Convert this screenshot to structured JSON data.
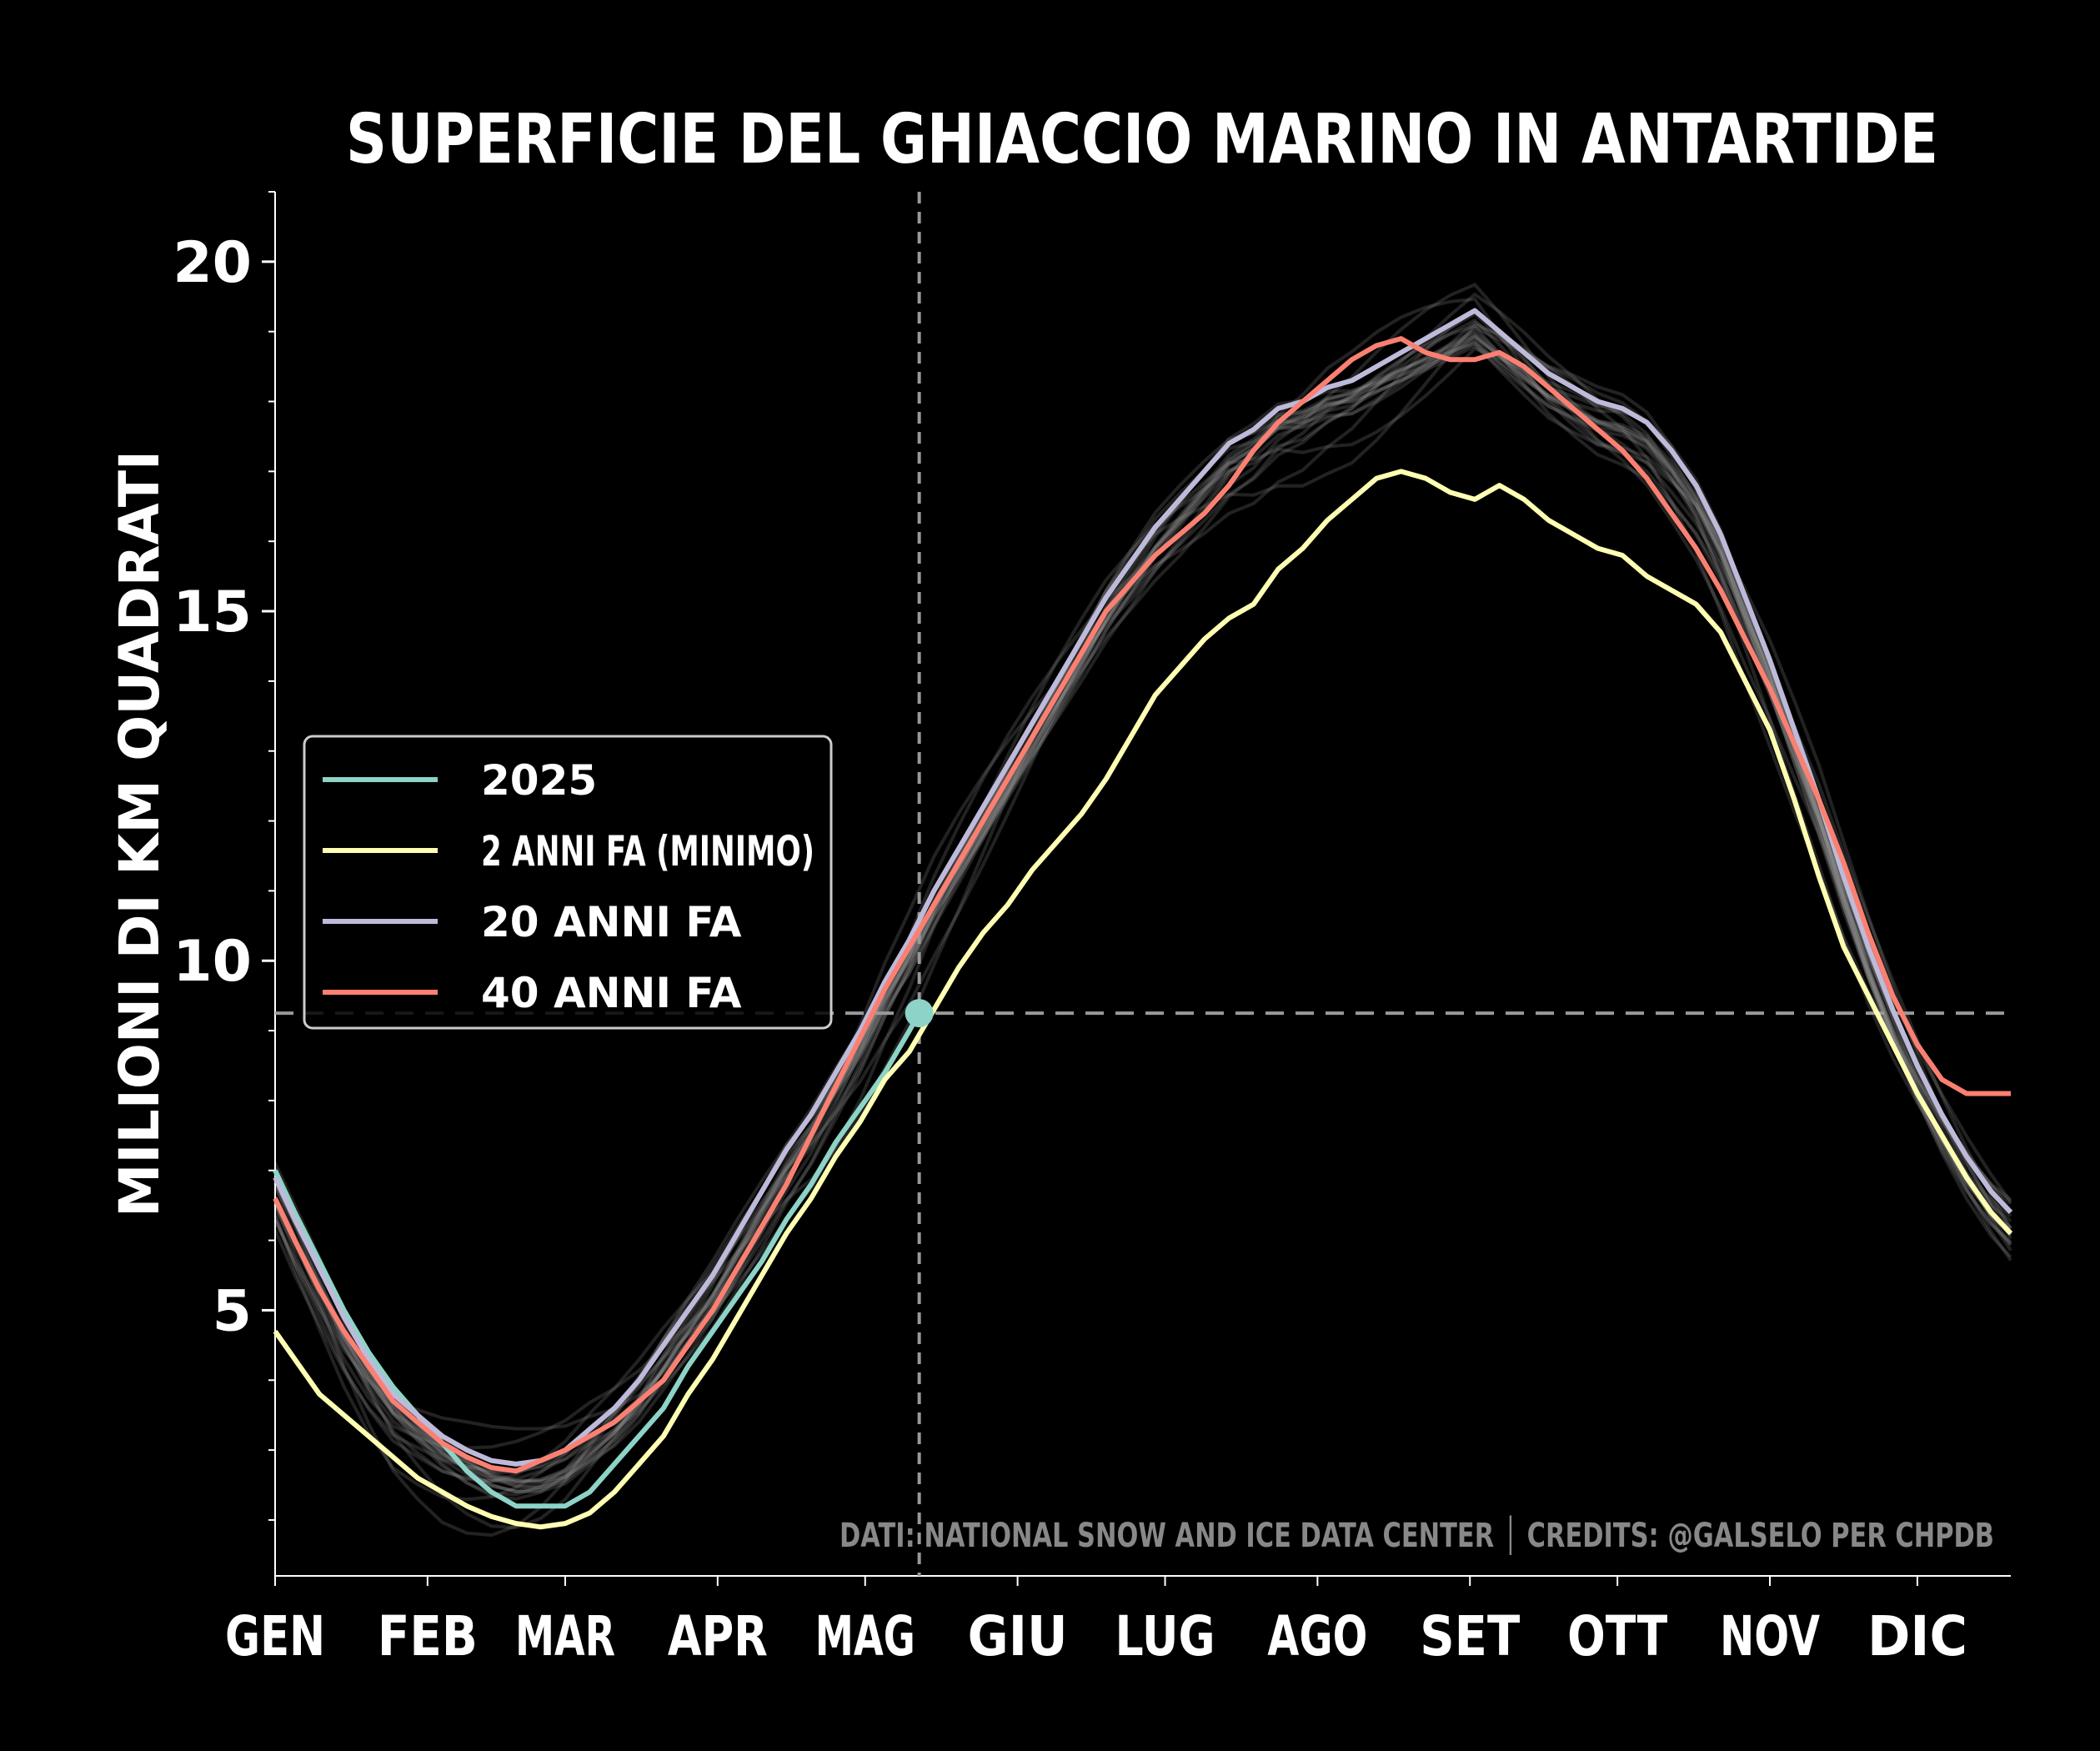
{
  "chart_data": {
    "type": "line",
    "title": "SUPERFICIE DEL GHIACCIO MARINO IN ANTARTIDE",
    "ylabel": "MILIONI DI KM QUADRATI",
    "xlabel": "",
    "months": [
      "GEN",
      "FEB",
      "MAR",
      "APR",
      "MAG",
      "GIU",
      "LUG",
      "AGO",
      "SET",
      "OTT",
      "NOV",
      "DIC"
    ],
    "y_ticks": [
      5,
      10,
      15,
      20
    ],
    "ylim": [
      1.2,
      21
    ],
    "xlim_day": [
      1,
      354
    ],
    "credits": "DATI: NATIONAL SNOW AND ICE DATA CENTER │ CREDITS: @GALSELO PER CHPDB",
    "reference_lines": {
      "current_day": 132,
      "current_value": 9.25
    },
    "current_point": {
      "day": 132,
      "value": 9.25
    },
    "legend_position": "center-left",
    "series": [
      {
        "name": "2025",
        "color": "#8dd3c7",
        "x": [
          1,
          5,
          10,
          15,
          20,
          25,
          30,
          35,
          40,
          45,
          50,
          55,
          60,
          65,
          70,
          75,
          80,
          85,
          90,
          95,
          100,
          105,
          110,
          115,
          120,
          125,
          130,
          132
        ],
        "y": [
          7.0,
          6.4,
          5.7,
          5.0,
          4.4,
          3.9,
          3.5,
          3.1,
          2.7,
          2.4,
          2.2,
          2.2,
          2.2,
          2.4,
          2.8,
          3.2,
          3.6,
          4.2,
          4.7,
          5.2,
          5.7,
          6.3,
          6.8,
          7.4,
          7.9,
          8.4,
          9.0,
          9.25
        ]
      },
      {
        "name": "2 ANNI FA (MINIMO)",
        "color": "#ffffb3",
        "x": [
          1,
          5,
          10,
          15,
          20,
          25,
          30,
          35,
          40,
          45,
          50,
          55,
          60,
          65,
          70,
          75,
          80,
          85,
          90,
          95,
          100,
          105,
          110,
          115,
          120,
          125,
          130,
          135,
          140,
          145,
          150,
          155,
          160,
          165,
          170,
          175,
          180,
          185,
          190,
          195,
          200,
          205,
          210,
          215,
          220,
          225,
          230,
          235,
          240,
          245,
          250,
          255,
          260,
          265,
          270,
          275,
          280,
          285,
          290,
          295,
          300,
          305,
          310,
          315,
          320,
          325,
          330,
          335,
          340,
          345,
          350,
          354
        ],
        "y": [
          4.7,
          4.3,
          3.8,
          3.5,
          3.2,
          2.9,
          2.6,
          2.4,
          2.2,
          2.05,
          1.95,
          1.9,
          1.95,
          2.1,
          2.4,
          2.8,
          3.2,
          3.8,
          4.3,
          4.9,
          5.5,
          6.1,
          6.6,
          7.2,
          7.7,
          8.3,
          8.7,
          9.3,
          9.9,
          10.4,
          10.8,
          11.3,
          11.7,
          12.1,
          12.6,
          13.2,
          13.8,
          14.2,
          14.6,
          14.9,
          15.1,
          15.6,
          15.9,
          16.3,
          16.6,
          16.9,
          17.0,
          16.9,
          16.7,
          16.6,
          16.8,
          16.6,
          16.3,
          16.1,
          15.9,
          15.8,
          15.5,
          15.3,
          15.1,
          14.7,
          14.0,
          13.3,
          12.3,
          11.2,
          10.2,
          9.5,
          8.8,
          8.1,
          7.5,
          6.9,
          6.4,
          6.1
        ]
      },
      {
        "name": "20 ANNI FA",
        "color": "#bebada",
        "x": [
          1,
          5,
          10,
          15,
          20,
          25,
          30,
          35,
          40,
          45,
          50,
          55,
          60,
          65,
          70,
          75,
          80,
          85,
          90,
          95,
          100,
          105,
          110,
          115,
          120,
          125,
          130,
          135,
          140,
          145,
          150,
          155,
          160,
          165,
          170,
          175,
          180,
          185,
          190,
          195,
          200,
          205,
          210,
          215,
          220,
          225,
          230,
          235,
          240,
          245,
          250,
          255,
          260,
          265,
          270,
          275,
          280,
          285,
          290,
          295,
          300,
          305,
          310,
          315,
          320,
          325,
          330,
          335,
          340,
          345,
          350,
          354
        ],
        "y": [
          6.9,
          6.3,
          5.6,
          4.9,
          4.3,
          3.8,
          3.5,
          3.2,
          3.0,
          2.85,
          2.8,
          2.85,
          3.0,
          3.3,
          3.6,
          4.0,
          4.5,
          5.0,
          5.5,
          6.1,
          6.7,
          7.3,
          7.8,
          8.4,
          9.0,
          9.7,
          10.3,
          11.0,
          11.6,
          12.2,
          12.8,
          13.4,
          14.0,
          14.6,
          15.2,
          15.7,
          16.2,
          16.6,
          17.0,
          17.4,
          17.6,
          17.9,
          18.0,
          18.2,
          18.3,
          18.5,
          18.7,
          18.9,
          19.1,
          19.3,
          19.0,
          18.7,
          18.4,
          18.2,
          18.0,
          17.9,
          17.7,
          17.3,
          16.8,
          16.1,
          15.2,
          14.3,
          13.3,
          12.3,
          11.2,
          10.2,
          9.3,
          8.5,
          7.8,
          7.2,
          6.7,
          6.4
        ]
      },
      {
        "name": "40 ANNI FA",
        "color": "#fb8072",
        "x": [
          1,
          5,
          10,
          15,
          20,
          25,
          30,
          35,
          40,
          45,
          50,
          55,
          60,
          65,
          70,
          75,
          80,
          85,
          90,
          95,
          100,
          105,
          110,
          115,
          120,
          125,
          130,
          135,
          140,
          145,
          150,
          155,
          160,
          165,
          170,
          175,
          180,
          185,
          190,
          195,
          200,
          205,
          210,
          215,
          220,
          225,
          230,
          235,
          240,
          245,
          250,
          255,
          260,
          265,
          270,
          275,
          280,
          285,
          290,
          295,
          300,
          305,
          310,
          315,
          320,
          325,
          330,
          335,
          340,
          345,
          350,
          354
        ],
        "y": [
          6.6,
          6.0,
          5.3,
          4.7,
          4.2,
          3.7,
          3.4,
          3.1,
          2.9,
          2.75,
          2.7,
          2.85,
          3.0,
          3.2,
          3.4,
          3.7,
          4.0,
          4.5,
          5.0,
          5.6,
          6.2,
          6.8,
          7.5,
          8.2,
          8.9,
          9.6,
          10.2,
          10.8,
          11.4,
          12.0,
          12.6,
          13.2,
          13.8,
          14.4,
          15.0,
          15.4,
          15.8,
          16.1,
          16.4,
          16.8,
          17.3,
          17.7,
          18.0,
          18.3,
          18.6,
          18.8,
          18.9,
          18.7,
          18.6,
          18.6,
          18.7,
          18.5,
          18.2,
          17.9,
          17.6,
          17.3,
          16.9,
          16.4,
          15.9,
          15.3,
          14.6,
          13.9,
          13.1,
          12.3,
          11.4,
          10.4,
          9.5,
          8.8,
          8.3,
          8.1,
          8.1,
          8.1
        ]
      }
    ]
  }
}
